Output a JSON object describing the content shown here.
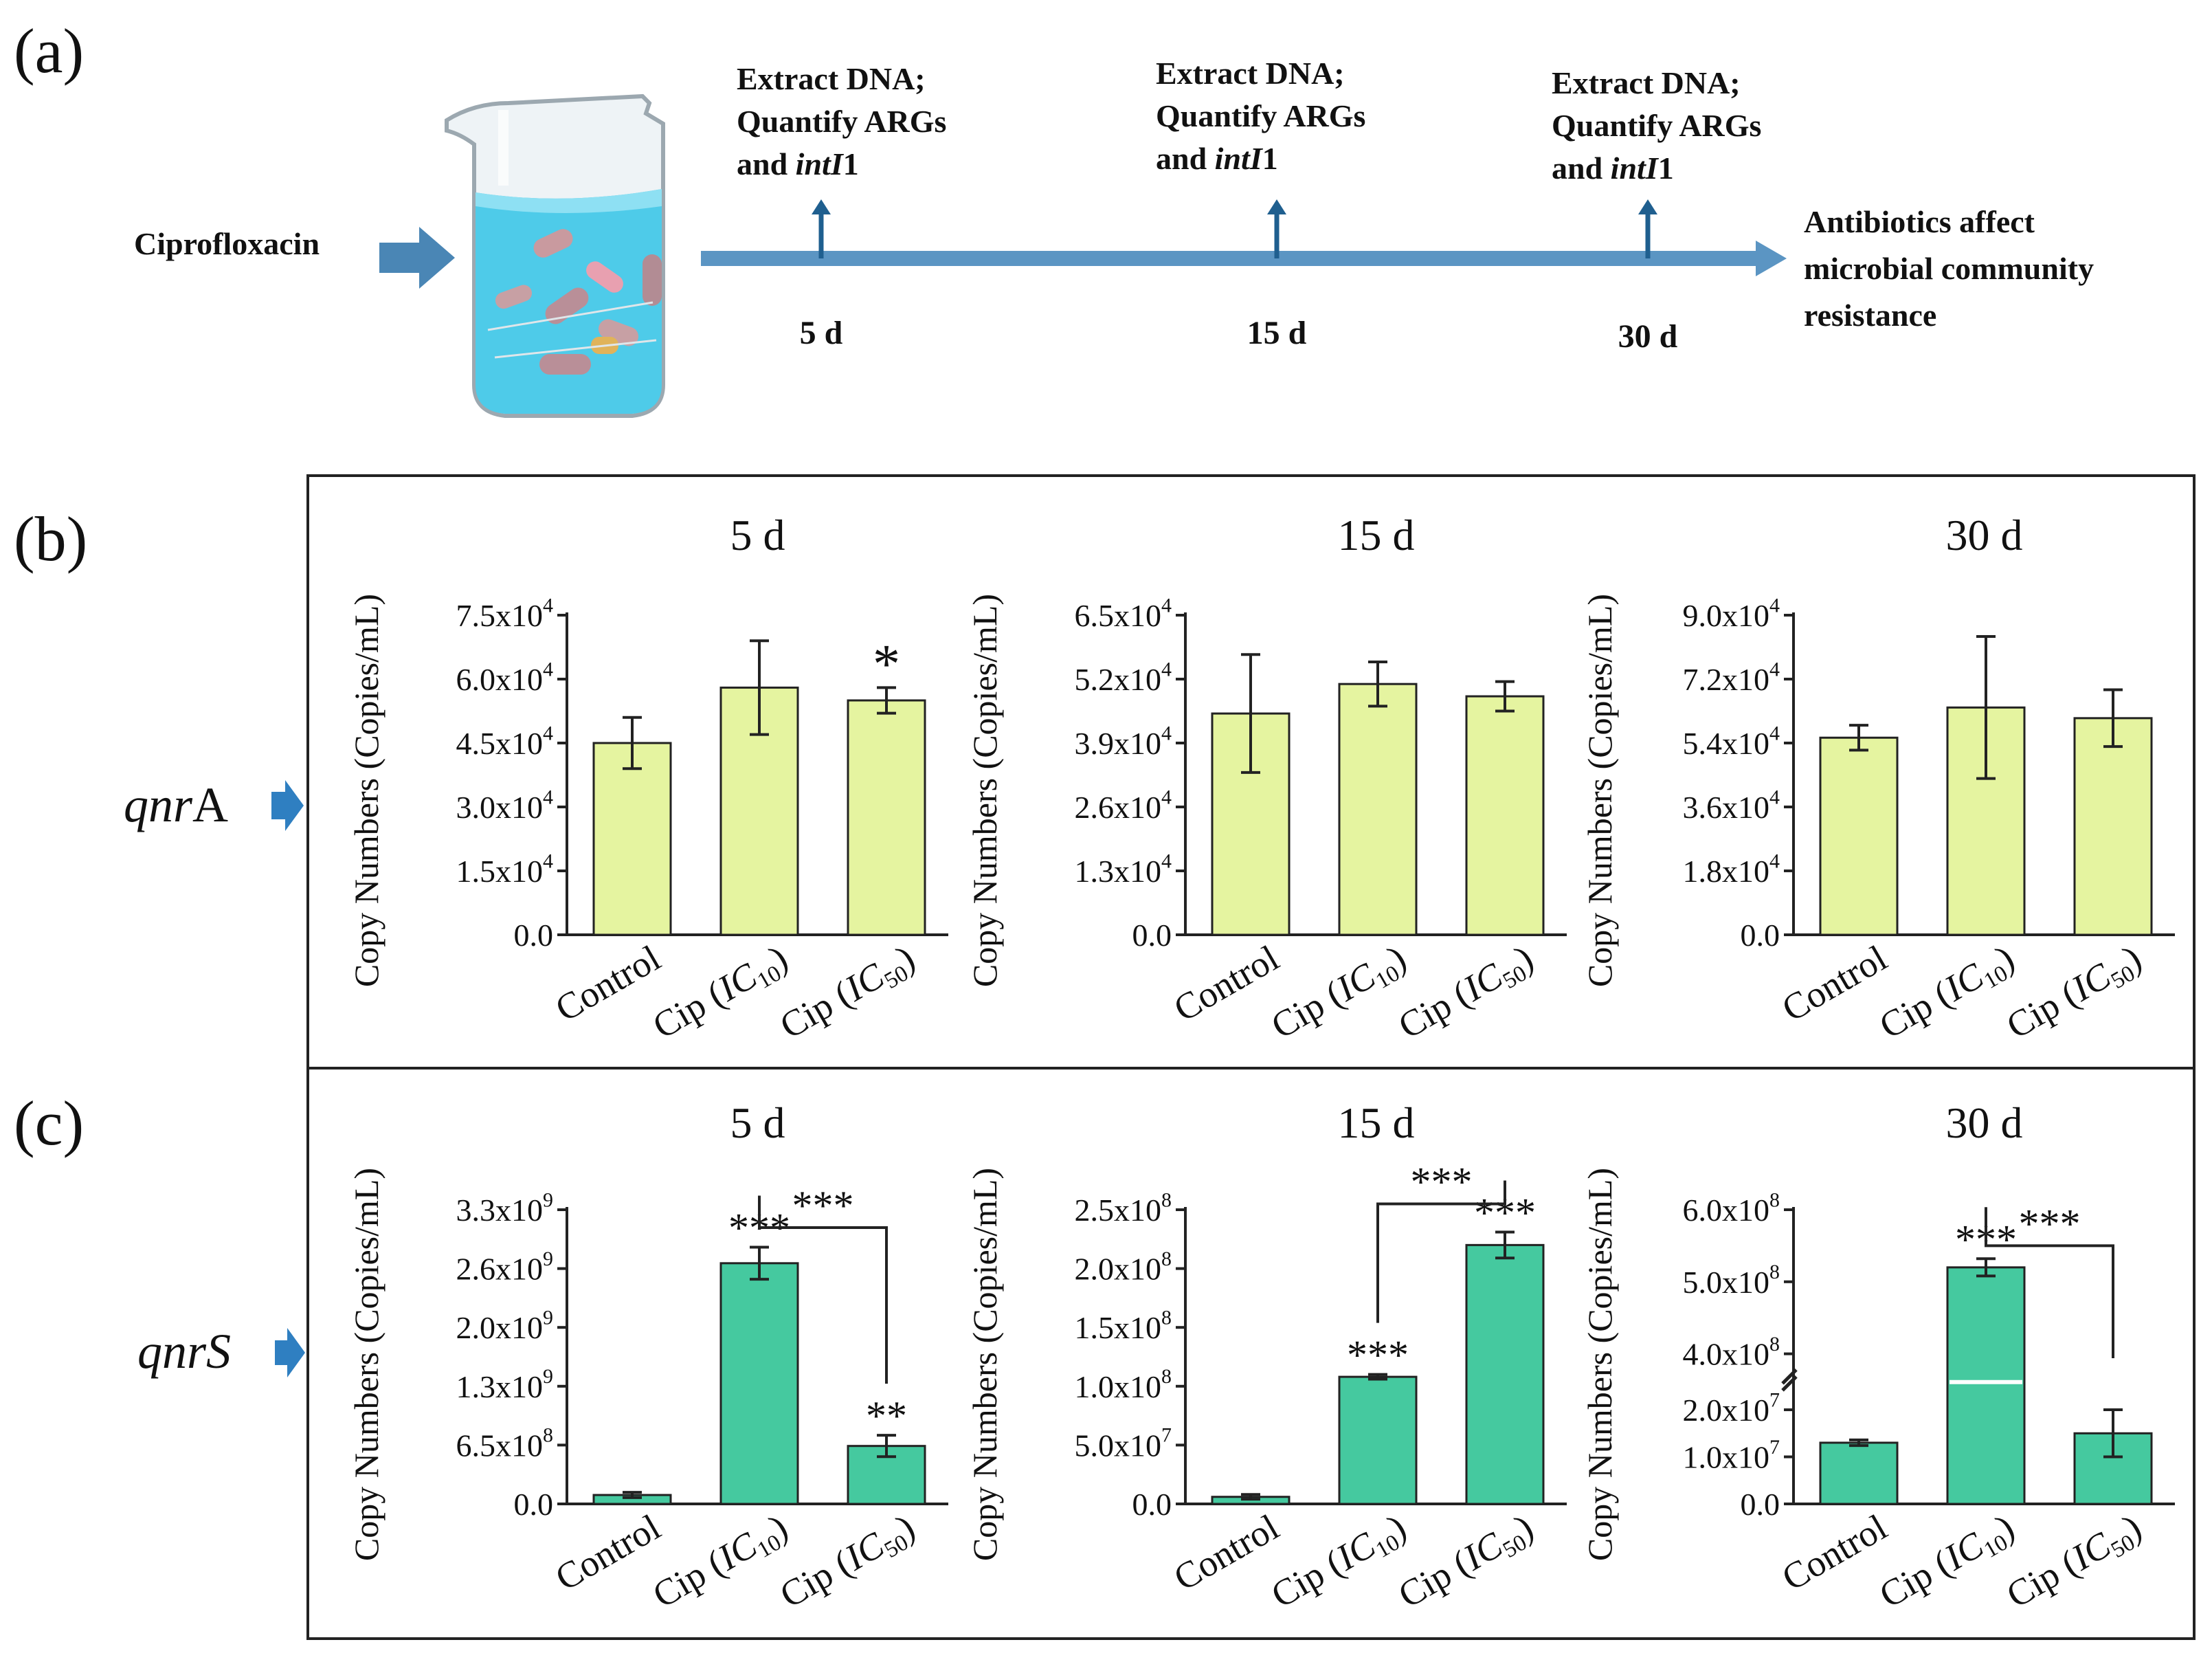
{
  "panel_a": {
    "label": "(a)",
    "input": "Ciprofloxacin",
    "steps": [
      {
        "line1": "Extract DNA;",
        "line2": "Quantify ARGs",
        "line3_pre": "and ",
        "line3_gene": "intI",
        "line3_post": "1",
        "day": "5 d"
      },
      {
        "line1": "Extract DNA;",
        "line2": "Quantify ARGs",
        "line3_pre": "and ",
        "line3_gene": "intI",
        "line3_post": "1",
        "day": "15 d"
      },
      {
        "line1": "Extract DNA;",
        "line2": "Quantify ARGs",
        "line3_pre": "and ",
        "line3_gene": "intI",
        "line3_post": "1",
        "day": "30 d"
      }
    ],
    "outcome": [
      "Antibiotics affect",
      "microbial community",
      "resistance"
    ]
  },
  "panel_b": {
    "label": "(b)",
    "gene_italic": "qnr",
    "gene_rest": "A"
  },
  "panel_c": {
    "label": "(c)",
    "gene_italic": "qnrS",
    "gene_rest": ""
  },
  "ylabel": "Copy Numbers (Copies/mL)",
  "colors": {
    "qnrA": "#e5f4a0",
    "qnrS": "#45c99f",
    "accent": "#2f7fc1"
  },
  "chart_data": [
    {
      "type": "bar",
      "panel": "b",
      "title": "5 d",
      "categories": [
        "Control",
        "Cip (IC10)",
        "Cip (IC50)"
      ],
      "values": [
        45000,
        58000,
        55000
      ],
      "errors": [
        6000,
        11000,
        3000
      ],
      "ylim": [
        0,
        75000
      ],
      "yticks": [
        "0.0",
        "1.5x10^4",
        "3.0x10^4",
        "4.5x10^4",
        "6.0x10^4",
        "7.5x10^4"
      ],
      "bar_annotations": [
        "",
        "",
        "*"
      ],
      "brackets": []
    },
    {
      "type": "bar",
      "panel": "b",
      "title": "15 d",
      "categories": [
        "Control",
        "Cip (IC10)",
        "Cip (IC50)"
      ],
      "values": [
        45000,
        51000,
        48500
      ],
      "errors": [
        12000,
        4500,
        3000
      ],
      "ylim": [
        0,
        65000
      ],
      "yticks": [
        "0.0",
        "1.3x10^4",
        "2.6x10^4",
        "3.9x10^4",
        "5.2x10^4",
        "6.5x10^4"
      ],
      "bar_annotations": [
        "",
        "",
        ""
      ],
      "brackets": []
    },
    {
      "type": "bar",
      "panel": "b",
      "title": "30 d",
      "categories": [
        "Control",
        "Cip (IC10)",
        "Cip (IC50)"
      ],
      "values": [
        55500,
        64000,
        61000
      ],
      "errors": [
        3500,
        20000,
        8000
      ],
      "ylim": [
        0,
        90000
      ],
      "yticks": [
        "0.0",
        "1.8x10^4",
        "3.6x10^4",
        "5.4x10^4",
        "7.2x10^4",
        "9.0x10^4"
      ],
      "bar_annotations": [
        "",
        "",
        ""
      ],
      "brackets": []
    },
    {
      "type": "bar",
      "panel": "c",
      "title": "5 d",
      "categories": [
        "Control",
        "Cip (IC10)",
        "Cip (IC50)"
      ],
      "values": [
        100000000,
        2700000000,
        650000000
      ],
      "errors": [
        30000000,
        180000000,
        120000000
      ],
      "ylim": [
        0,
        3300000000
      ],
      "yticks": [
        "0.0",
        "6.5x10^8",
        "1.3x10^9",
        "2.0x10^9",
        "2.6x10^9",
        "3.3x10^9"
      ],
      "bar_annotations": [
        "",
        "***",
        "**"
      ],
      "brackets": [
        {
          "from": 1,
          "to": 2,
          "label": "***",
          "at": 3100000000
        }
      ]
    },
    {
      "type": "bar",
      "panel": "c",
      "title": "15 d",
      "categories": [
        "Control",
        "Cip (IC10)",
        "Cip (IC50)"
      ],
      "values": [
        6000000,
        108000000,
        220000000
      ],
      "errors": [
        2000000,
        2000000,
        11000000
      ],
      "ylim": [
        0,
        250000000
      ],
      "yticks": [
        "0.0",
        "5.0x10^7",
        "1.0x10^8",
        "1.5x10^8",
        "2.0x10^8",
        "2.5x10^8"
      ],
      "bar_annotations": [
        "",
        "***",
        "***"
      ],
      "brackets": [
        {
          "from": 1,
          "to": 2,
          "label": "***",
          "at": 255000000
        }
      ]
    },
    {
      "type": "bar",
      "panel": "c",
      "title": "30 d",
      "broken_axis": true,
      "categories": [
        "Control",
        "Cip (IC10)",
        "Cip (IC50)"
      ],
      "values": [
        13000000,
        520000000,
        15000000
      ],
      "errors": [
        600000,
        12000000,
        5000000
      ],
      "ylim": [
        0,
        600000000
      ],
      "yticks": [
        "0.0",
        "1.0x10^7",
        "2.0x10^7",
        "4.0x10^8",
        "5.0x10^8",
        "6.0x10^8"
      ],
      "bar_annotations": [
        "",
        "***",
        ""
      ],
      "brackets": [
        {
          "from": 1,
          "to": 2,
          "label": "***",
          "at": 550000000
        }
      ]
    }
  ]
}
